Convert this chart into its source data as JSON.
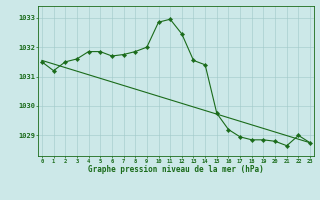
{
  "hours": [
    0,
    1,
    2,
    3,
    4,
    5,
    6,
    7,
    8,
    9,
    10,
    11,
    12,
    13,
    14,
    15,
    16,
    17,
    18,
    19,
    20,
    21,
    22,
    23
  ],
  "pressure_main": [
    1031.5,
    1031.2,
    1031.5,
    1031.6,
    1031.85,
    1031.85,
    1031.7,
    1031.75,
    1031.85,
    1032.0,
    1032.85,
    1032.95,
    1032.45,
    1031.55,
    1031.4,
    1029.75,
    1029.2,
    1028.95,
    1028.85,
    1028.85,
    1028.8,
    1028.65,
    1029.0,
    1028.75
  ],
  "trend_x": [
    0,
    23
  ],
  "trend_y": [
    1031.55,
    1028.75
  ],
  "line_color": "#1a6b1a",
  "bg_color": "#cce8e8",
  "grid_color": "#a0c8c8",
  "text_color": "#1a6b1a",
  "ylabel_ticks": [
    1029,
    1030,
    1031,
    1032,
    1033
  ],
  "ylim": [
    1028.3,
    1033.4
  ],
  "xlim": [
    -0.3,
    23.3
  ],
  "xlabel": "Graphe pression niveau de la mer (hPa)"
}
